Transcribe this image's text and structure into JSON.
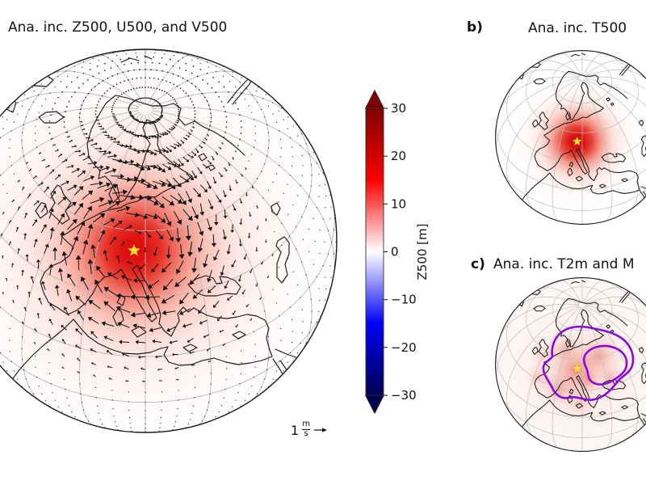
{
  "panel_a": {
    "title": "Ana. inc. Z500, U500, and V500"
  },
  "panel_b": {
    "label": "b)",
    "title": "Ana. inc. T500"
  },
  "panel_c": {
    "label": "c)",
    "title": "Ana. inc. T2m and M"
  },
  "colorbar": {
    "label": "Z500 [m]",
    "ticks": [
      "30",
      "20",
      "10",
      "0",
      "−10",
      "−20",
      "−30"
    ],
    "vmin": -30,
    "vmax": 30,
    "extend": "both"
  },
  "quiver_key": {
    "value": "1",
    "unit_numerator": "m",
    "unit_denominator": "s"
  },
  "colors": {
    "star_yellow": "#f6e32b",
    "star_outline": "#2a2a2a",
    "contour_purple": "#8a0ad8",
    "increment_red_core": "#dc0a0a",
    "coastline_black": "#1b1b1b",
    "graticule_gray": "#b8b8b8",
    "seismic_top": "#7d0000",
    "seismic_red": "#fb0000",
    "seismic_white": "#ffffff",
    "seismic_blue": "#0000f6",
    "seismic_bottom": "#00004f"
  },
  "chart_data": [
    {
      "type": "heatmap",
      "panel": "a",
      "title": "Ana. inc. Z500, U500, and V500",
      "projection": "orthographic globe centered on Europe",
      "shaded_variable": "Z500 analysis increment [m]",
      "vector_variables": [
        "U500",
        "V500"
      ],
      "colormap": "seismic (dark blue - blue - white - red - dark red)",
      "value_range": [
        -30,
        30
      ],
      "colorbar_ticks": [
        30,
        20,
        10,
        0,
        -10,
        -20,
        -30
      ],
      "colorbar_extend": "arrows on both ends",
      "colorbar_label": "Z500 [m]",
      "observed_pattern": "large positive (red) Z500 increment centered on a yellow star over the northern Adriatic / Slovenia, peak about +25 to +30 m, decaying radially outward; rest of globe near zero (white, faint pink)",
      "wind_pattern": "quiver arrows circulate clockwise (anticyclonic) around the star with magnitude up to about 1 m/s; far-field grid points appear as tiny dots on the regular lat-lon grid, merging into solid rings near the pole",
      "reference_vector": "1 m/s",
      "marker": "yellow star at increment center"
    },
    {
      "type": "heatmap",
      "panel": "b",
      "title": "Ana. inc. T500",
      "projection": "orthographic globe centered on Europe",
      "shaded_variable": "T500 analysis increment",
      "observed_pattern": "compact positive (red) increment centered on the yellow star over the northern Adriatic; no colorbar shown for this panel",
      "marker": "yellow star at increment center"
    },
    {
      "type": "heatmap",
      "panel": "c",
      "title": "Ana. inc. T2m and M (title clipped at image edge)",
      "projection": "orthographic globe centered on Europe",
      "shaded_variable": "T2m analysis increment",
      "observed_pattern": "weak patchy positive (light red) increments over central and southern Europe around the star",
      "contours": "two closed purple contour loops over central/eastern Europe (second listed variable)",
      "marker": "yellow star at increment center"
    }
  ]
}
